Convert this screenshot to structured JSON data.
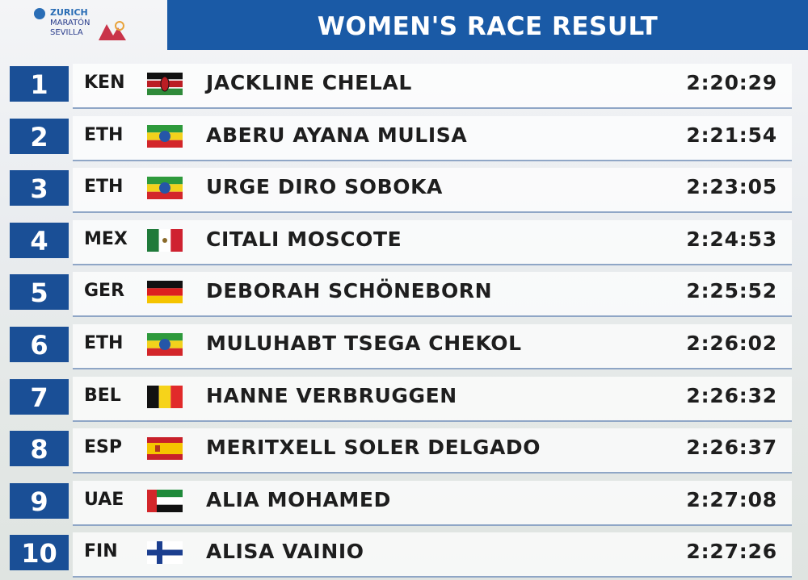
{
  "header": {
    "logo_brand": "ZURICH",
    "logo_event": "MARATÓN SEVILLA",
    "title": "WOMEN'S RACE RESULT"
  },
  "table": {
    "rows": [
      [
        "1",
        "KEN",
        "JACKLINE CHELAL",
        "2:20:29"
      ],
      [
        "2",
        "ETH",
        "ABERU AYANA MULISA",
        "2:21:54"
      ],
      [
        "3",
        "ETH",
        "URGE DIRO SOBOKA",
        "2:23:05"
      ],
      [
        "4",
        "MEX",
        "CITALI MOSCOTE",
        "2:24:53"
      ],
      [
        "5",
        "GER",
        "DEBORAH SCHÖNEBORN",
        "2:25:52"
      ],
      [
        "6",
        "ETH",
        "MULUHABT TSEGA CHEKOL",
        "2:26:02"
      ],
      [
        "7",
        "BEL",
        "HANNE VERBRUGGEN",
        "2:26:32"
      ],
      [
        "8",
        "ESP",
        "MERITXELL SOLER DELGADO",
        "2:26:37"
      ],
      [
        "9",
        "UAE",
        "ALIA MOHAMED",
        "2:27:08"
      ],
      [
        "10",
        "FIN",
        "ALISA VAINIO",
        "2:27:26"
      ]
    ]
  }
}
